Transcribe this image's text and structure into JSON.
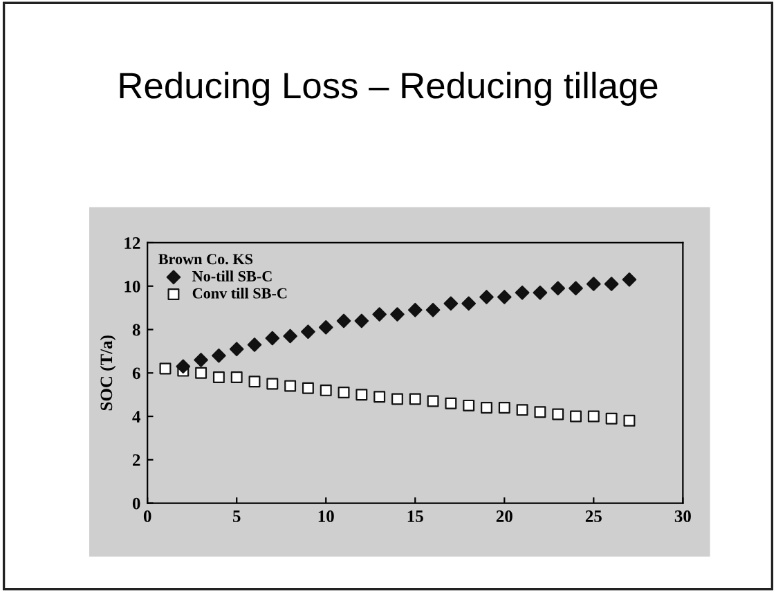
{
  "chart_data": {
    "type": "scatter",
    "title": "Reducing Loss – Reducing tillage",
    "ylabel": "SOC (T/a)",
    "legend_title": "Brown Co. KS",
    "legend": "top left",
    "grid": false,
    "xlim": [
      0,
      30
    ],
    "xticks": [
      0,
      5,
      10,
      15,
      20,
      25,
      30
    ],
    "ylim": [
      0,
      12
    ],
    "yticks": [
      0,
      2,
      4,
      6,
      8,
      10,
      12
    ],
    "x": [
      1,
      2,
      3,
      4,
      5,
      6,
      7,
      8,
      9,
      10,
      11,
      12,
      13,
      14,
      15,
      16,
      17,
      18,
      19,
      20,
      21,
      22,
      23,
      24,
      25,
      26,
      27
    ],
    "series": [
      {
        "name": "No-till SB-C",
        "color": "#111111",
        "marker": "diamond",
        "values": [
          null,
          6.3,
          6.6,
          6.8,
          7.1,
          7.3,
          7.6,
          7.7,
          7.9,
          8.1,
          8.4,
          8.4,
          8.7,
          8.7,
          8.9,
          8.9,
          9.2,
          9.2,
          9.5,
          9.5,
          9.7,
          9.7,
          9.9,
          9.9,
          10.1,
          10.1,
          10.3
        ]
      },
      {
        "name": "Conv till SB-C",
        "color": "#111111",
        "marker": "square",
        "values": [
          6.2,
          6.1,
          6.0,
          5.8,
          5.8,
          5.6,
          5.5,
          5.4,
          5.3,
          5.2,
          5.1,
          5.0,
          4.9,
          4.8,
          4.8,
          4.7,
          4.6,
          4.5,
          4.4,
          4.4,
          4.3,
          4.2,
          4.1,
          4.0,
          4.0,
          3.9,
          3.8
        ]
      }
    ]
  }
}
